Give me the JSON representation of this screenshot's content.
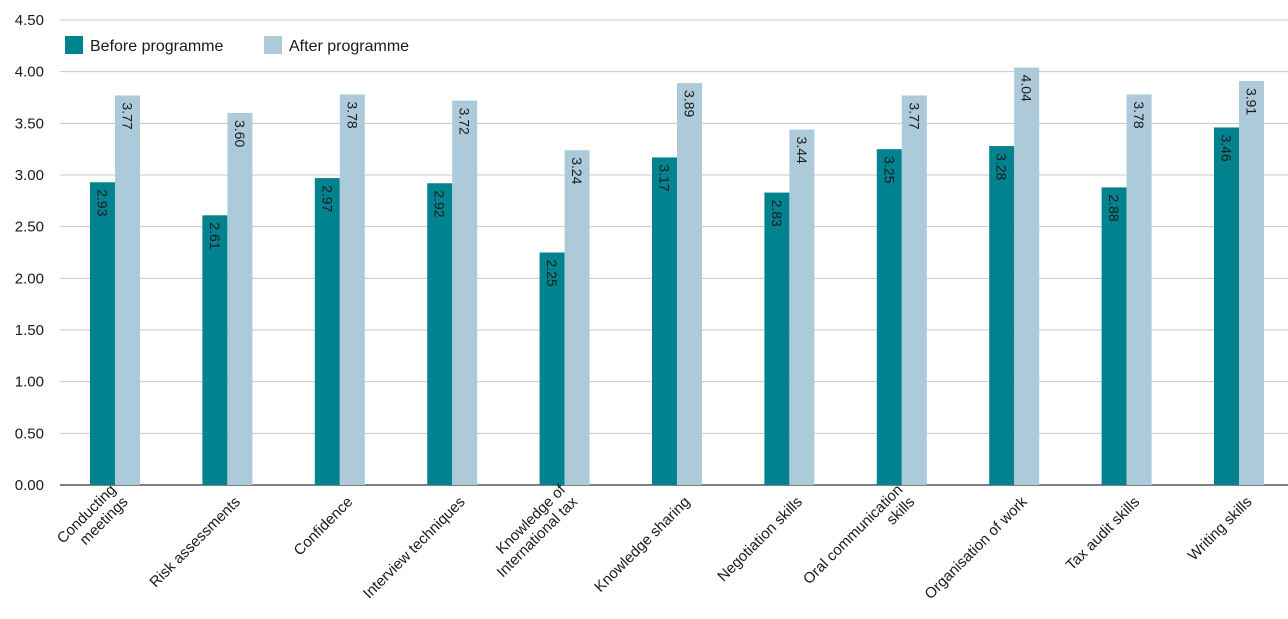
{
  "chart_data": {
    "type": "bar",
    "categories": [
      "Conducting meetings",
      "Risk assessments",
      "Confidence",
      "Interview techniques",
      "Knowledge of International tax",
      "Knowledge sharing",
      "Negotiation skills",
      "Oral communication skills",
      "Organisation of work",
      "Tax audit skills",
      "Writing skills"
    ],
    "category_lines": [
      [
        "Conducting",
        "meetings"
      ],
      [
        "Risk assessments"
      ],
      [
        "Confidence"
      ],
      [
        "Interview techniques"
      ],
      [
        "Knowledge of",
        "International tax"
      ],
      [
        "Knowledge sharing"
      ],
      [
        "Negotiation skills"
      ],
      [
        "Oral communication",
        "skills"
      ],
      [
        "Organisation of work"
      ],
      [
        "Tax audit skills"
      ],
      [
        "Writing skills"
      ]
    ],
    "series": [
      {
        "name": "Before programme",
        "color": "#00838f",
        "values": [
          2.93,
          2.61,
          2.97,
          2.92,
          2.25,
          3.17,
          2.83,
          3.25,
          3.28,
          2.88,
          3.46
        ],
        "labels": [
          "2.93",
          "2.61",
          "2.97",
          "2.92",
          "2.25",
          "3.17",
          "2.83",
          "3.25",
          "3.28",
          "2.88",
          "3.46"
        ]
      },
      {
        "name": "After programme",
        "color": "#adcadb",
        "values": [
          3.77,
          3.6,
          3.78,
          3.72,
          3.24,
          3.89,
          3.44,
          3.77,
          4.04,
          3.78,
          3.91
        ],
        "labels": [
          "3.77",
          "3.60",
          "3.78",
          "3.72",
          "3.24",
          "3.89",
          "3.44",
          "3.77",
          "4.04",
          "3.78",
          "3.91"
        ]
      }
    ],
    "title": "",
    "xlabel": "",
    "ylabel": "",
    "ylim": [
      0,
      4.5
    ],
    "yticks": [
      "0.00",
      "0.50",
      "1.00",
      "1.50",
      "2.00",
      "2.50",
      "3.00",
      "3.50",
      "4.00",
      "4.50"
    ],
    "grid": true,
    "legend": "top-left"
  }
}
